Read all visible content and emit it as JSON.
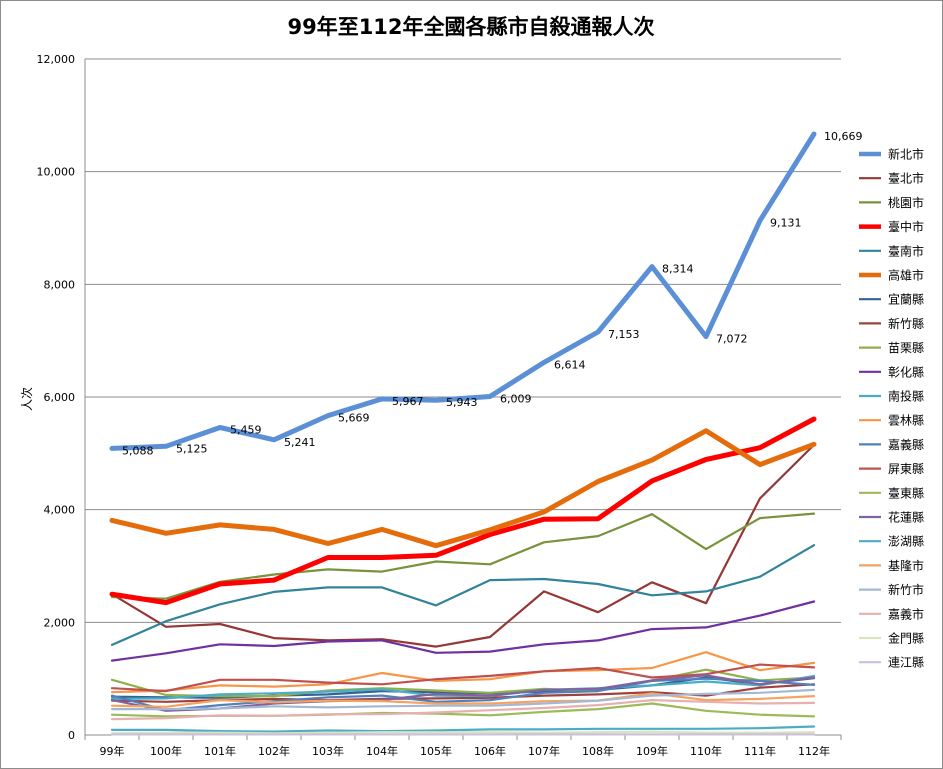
{
  "chart_data": {
    "type": "line",
    "title": "99年至112年全國各縣市自殺通報人次",
    "xlabel": "",
    "ylabel": "人次",
    "ylim": [
      0,
      12000
    ],
    "yticks": [
      0,
      2000,
      4000,
      6000,
      8000,
      10000,
      12000
    ],
    "ytick_labels": [
      "0",
      "2,000",
      "4,000",
      "6,000",
      "8,000",
      "10,000",
      "12,000"
    ],
    "grid": "horizontal",
    "legend_position": "right",
    "categories": [
      "99年",
      "100年",
      "101年",
      "102年",
      "103年",
      "104年",
      "105年",
      "106年",
      "107年",
      "108年",
      "109年",
      "110年",
      "111年",
      "112年"
    ],
    "series": [
      {
        "name": "新北市",
        "color": "#5b8fd6",
        "width": 5,
        "values": [
          5088,
          5125,
          5459,
          5241,
          5669,
          5967,
          5943,
          6009,
          6614,
          7153,
          8314,
          7072,
          9131,
          10669
        ],
        "labels": [
          "5,088",
          "5,125",
          "5,459",
          "5,241",
          "5,669",
          "5,967",
          "5,943",
          "6,009",
          "6,614",
          "7,153",
          "8,314",
          "7,072",
          "9,131",
          "10,669"
        ]
      },
      {
        "name": "臺北市",
        "color": "#953735",
        "width": 2.2,
        "values": [
          2500,
          1920,
          1970,
          1720,
          1680,
          1700,
          1570,
          1740,
          2550,
          2180,
          2710,
          2340,
          4200,
          5150
        ]
      },
      {
        "name": "桃園市",
        "color": "#77933c",
        "width": 2.2,
        "values": [
          2450,
          2420,
          2720,
          2850,
          2940,
          2900,
          3080,
          3030,
          3420,
          3530,
          3920,
          3300,
          3850,
          3930
        ]
      },
      {
        "name": "臺中市",
        "color": "#ff0000",
        "width": 5,
        "values": [
          2500,
          2350,
          2680,
          2750,
          3150,
          3150,
          3190,
          3560,
          3830,
          3840,
          4510,
          4890,
          5100,
          5610
        ]
      },
      {
        "name": "臺南市",
        "color": "#31849b",
        "width": 2.2,
        "values": [
          1600,
          2020,
          2320,
          2540,
          2620,
          2620,
          2300,
          2750,
          2770,
          2680,
          2480,
          2550,
          2810,
          3370
        ]
      },
      {
        "name": "高雄市",
        "color": "#e46c0a",
        "width": 5,
        "values": [
          3810,
          3580,
          3730,
          3650,
          3400,
          3650,
          3360,
          3640,
          3960,
          4500,
          4880,
          5400,
          4800,
          5160
        ]
      },
      {
        "name": "宜蘭縣",
        "color": "#376092",
        "width": 2.2,
        "values": [
          680,
          670,
          660,
          700,
          720,
          780,
          760,
          740,
          770,
          800,
          880,
          1020,
          900,
          1010
        ]
      },
      {
        "name": "新竹縣",
        "color": "#a0413e",
        "width": 2.2,
        "values": [
          610,
          590,
          620,
          640,
          620,
          640,
          650,
          660,
          700,
          720,
          760,
          700,
          840,
          900
        ]
      },
      {
        "name": "苗栗縣",
        "color": "#8fb04a",
        "width": 2.2,
        "values": [
          980,
          710,
          690,
          690,
          790,
          830,
          790,
          750,
          820,
          780,
          970,
          1160,
          970,
          1020
        ]
      },
      {
        "name": "彰化縣",
        "color": "#7030a0",
        "width": 2.2,
        "values": [
          1320,
          1450,
          1610,
          1580,
          1660,
          1680,
          1460,
          1480,
          1610,
          1680,
          1880,
          1910,
          2120,
          2370
        ]
      },
      {
        "name": "南投縣",
        "color": "#4bacc6",
        "width": 2.2,
        "values": [
          640,
          650,
          720,
          740,
          770,
          810,
          700,
          690,
          800,
          830,
          880,
          950,
          880,
          1050
        ]
      },
      {
        "name": "雲林縣",
        "color": "#f79646",
        "width": 2.2,
        "values": [
          760,
          790,
          880,
          860,
          900,
          1100,
          960,
          990,
          1130,
          1150,
          1190,
          1470,
          1150,
          1280
        ]
      },
      {
        "name": "嘉義縣",
        "color": "#4f81bd",
        "width": 2.2,
        "values": [
          700,
          440,
          530,
          600,
          670,
          700,
          590,
          620,
          750,
          780,
          960,
          1000,
          960,
          890
        ]
      },
      {
        "name": "屏東縣",
        "color": "#c0504d",
        "width": 2.2,
        "values": [
          830,
          780,
          980,
          980,
          930,
          900,
          990,
          1050,
          1130,
          1190,
          1020,
          1080,
          1250,
          1200
        ]
      },
      {
        "name": "臺東縣",
        "color": "#9bbb59",
        "width": 2.2,
        "values": [
          360,
          330,
          340,
          340,
          360,
          390,
          380,
          350,
          410,
          460,
          560,
          430,
          360,
          330
        ]
      },
      {
        "name": "花蓮縣",
        "color": "#8064a2",
        "width": 2.2,
        "values": [
          620,
          430,
          470,
          560,
          600,
          620,
          730,
          700,
          800,
          820,
          970,
          1060,
          900,
          1020
        ]
      },
      {
        "name": "澎湖縣",
        "color": "#4bacc6",
        "width": 2.2,
        "values": [
          90,
          90,
          70,
          60,
          80,
          70,
          80,
          100,
          100,
          110,
          110,
          110,
          120,
          150
        ]
      },
      {
        "name": "基隆市",
        "color": "#f4a460",
        "width": 2.2,
        "values": [
          520,
          500,
          620,
          580,
          610,
          600,
          560,
          560,
          600,
          610,
          740,
          620,
          640,
          690
        ]
      },
      {
        "name": "新竹市",
        "color": "#a5b8d3",
        "width": 2.2,
        "values": [
          460,
          460,
          470,
          510,
          490,
          510,
          520,
          520,
          560,
          610,
          700,
          730,
          750,
          800
        ]
      },
      {
        "name": "嘉義市",
        "color": "#e6b0b0",
        "width": 2.2,
        "values": [
          280,
          300,
          350,
          340,
          370,
          370,
          400,
          440,
          480,
          530,
          620,
          590,
          560,
          570
        ]
      },
      {
        "name": "金門縣",
        "color": "#d7e4bd",
        "width": 2.2,
        "values": [
          30,
          40,
          40,
          30,
          40,
          50,
          50,
          50,
          40,
          50,
          60,
          40,
          40,
          50
        ]
      },
      {
        "name": "連江縣",
        "color": "#ccc1da",
        "width": 2.2,
        "values": [
          10,
          10,
          10,
          10,
          10,
          10,
          10,
          10,
          10,
          10,
          10,
          10,
          10,
          10
        ]
      }
    ]
  }
}
